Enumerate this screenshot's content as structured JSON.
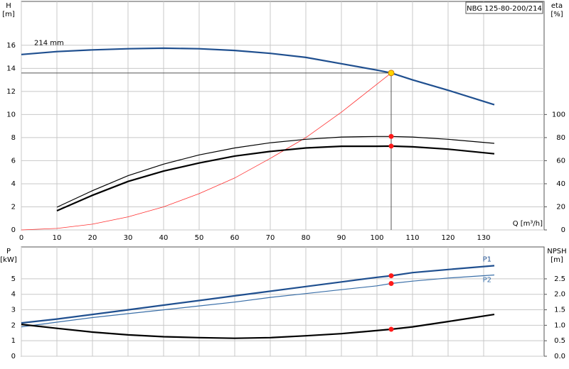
{
  "chart_data": [
    {
      "type": "line",
      "title": "NBG 125-80-200/214",
      "y_label": [
        "H",
        "[m]"
      ],
      "y2_label": [
        "eta",
        "[%]"
      ],
      "x_label": "Q [m³/h]",
      "annotation": "214 mm",
      "xlim": [
        0,
        147
      ],
      "xticks": [
        0,
        10,
        20,
        30,
        40,
        50,
        60,
        70,
        80,
        90,
        100,
        110,
        120,
        130
      ],
      "xtick_labels": true,
      "ylim": [
        0,
        19.8
      ],
      "yticks": [
        0,
        2,
        4,
        6,
        8,
        10,
        12,
        14,
        16
      ],
      "y2lim": [
        0,
        198
      ],
      "y2ticks": [
        0,
        20,
        40,
        60,
        80,
        100
      ],
      "grid": true,
      "operating_q": 104,
      "series": [
        {
          "color": "#1f4f8f",
          "width": 2.2,
          "x": [
            0,
            10,
            20,
            30,
            40,
            50,
            60,
            70,
            80,
            90,
            100,
            104,
            110,
            120,
            133
          ],
          "values": [
            15.2,
            15.45,
            15.6,
            15.7,
            15.75,
            15.7,
            15.55,
            15.3,
            14.95,
            14.4,
            13.85,
            13.6,
            13.0,
            12.1,
            10.85
          ]
        },
        {
          "color": "#ff3030",
          "width": 0.8,
          "x": [
            0,
            10,
            20,
            30,
            40,
            50,
            60,
            70,
            80,
            90,
            104
          ],
          "values": [
            0,
            0.13,
            0.5,
            1.13,
            2.0,
            3.14,
            4.5,
            6.2,
            8.0,
            10.2,
            13.6
          ]
        },
        {
          "color": "#000000",
          "width": 1.2,
          "axis": "y2",
          "x": [
            10,
            20,
            30,
            40,
            50,
            60,
            70,
            80,
            90,
            100,
            104,
            110,
            120,
            133
          ],
          "values": [
            19.7,
            34,
            47,
            57,
            65,
            71,
            75.5,
            78.5,
            80.5,
            81,
            81,
            80.5,
            78.5,
            75
          ]
        },
        {
          "color": "#000000",
          "width": 2.2,
          "axis": "y2",
          "x": [
            10,
            20,
            30,
            40,
            50,
            60,
            70,
            80,
            90,
            100,
            104,
            110,
            120,
            133
          ],
          "values": [
            16.6,
            30,
            42,
            51,
            58,
            64,
            68,
            71,
            72.5,
            72.5,
            72.6,
            72,
            70,
            66
          ]
        }
      ]
    },
    {
      "type": "line",
      "y_label": [
        "P",
        "[kW]"
      ],
      "y2_label": [
        "NPSH",
        "[m]"
      ],
      "xlim": [
        0,
        147
      ],
      "xticks": [
        0,
        10,
        20,
        30,
        40,
        50,
        60,
        70,
        80,
        90,
        100,
        110,
        120,
        130
      ],
      "xtick_labels": false,
      "ylim": [
        0,
        7.06
      ],
      "yticks": [
        0,
        1,
        2,
        3,
        4,
        5
      ],
      "y2lim": [
        0,
        3.53
      ],
      "y2ticks": [
        {
          "value": 0,
          "label": "0.0"
        },
        0.5,
        {
          "value": 1,
          "label": "1.0"
        },
        1.5,
        {
          "value": 2,
          "label": "2.0"
        },
        2.5
      ],
      "grid": true,
      "operating_q": 104,
      "series": [
        {
          "name": "P1",
          "color": "#1f4f8f",
          "width": 2.2,
          "x": [
            0,
            10,
            20,
            30,
            40,
            50,
            60,
            70,
            80,
            90,
            100,
            104,
            110,
            120,
            133
          ],
          "values": [
            2.15,
            2.4,
            2.7,
            3.0,
            3.3,
            3.6,
            3.9,
            4.2,
            4.5,
            4.8,
            5.1,
            5.2,
            5.4,
            5.6,
            5.85
          ]
        },
        {
          "name": "P2",
          "color": "#3a6fa8",
          "width": 1.2,
          "x": [
            0,
            10,
            20,
            30,
            40,
            50,
            60,
            70,
            80,
            90,
            100,
            104,
            110,
            120,
            133
          ],
          "values": [
            1.9,
            2.2,
            2.5,
            2.75,
            3.0,
            3.25,
            3.5,
            3.8,
            4.05,
            4.3,
            4.55,
            4.7,
            4.85,
            5.05,
            5.25
          ]
        },
        {
          "color": "#000000",
          "width": 2.2,
          "axis": "y2",
          "x": [
            0,
            10,
            20,
            30,
            40,
            50,
            60,
            70,
            80,
            90,
            104,
            110,
            120,
            133
          ],
          "values": [
            1.03,
            0.9,
            0.78,
            0.69,
            0.63,
            0.6,
            0.58,
            0.6,
            0.66,
            0.73,
            0.87,
            0.95,
            1.12,
            1.35
          ]
        }
      ]
    }
  ]
}
